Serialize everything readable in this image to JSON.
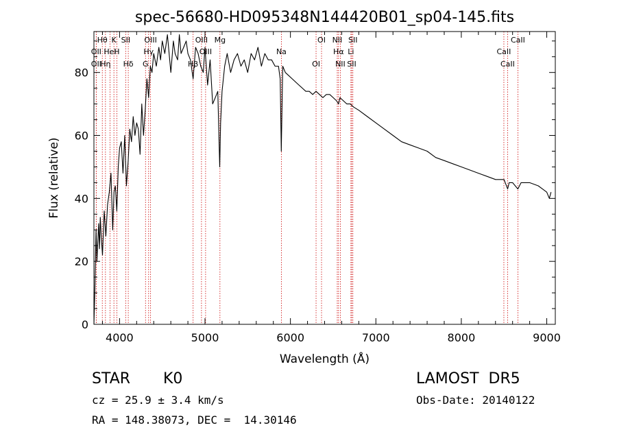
{
  "chart_data": {
    "type": "line",
    "title": "spec-56680-HD095348N144420B01_sp04-145.fits",
    "xlabel": "Wavelength (Å)",
    "ylabel": "Flux (relative)",
    "xlim": [
      3700,
      9100
    ],
    "ylim": [
      0,
      93
    ],
    "xticks": [
      4000,
      5000,
      6000,
      7000,
      8000,
      9000
    ],
    "yticks": [
      0,
      20,
      40,
      60,
      80
    ],
    "grid": false,
    "series": [
      {
        "color": "#000000",
        "x": [
          3700,
          3712,
          3725,
          3735,
          3745,
          3755,
          3765,
          3775,
          3785,
          3800,
          3820,
          3840,
          3860,
          3880,
          3900,
          3920,
          3935,
          3950,
          3968,
          3985,
          4000,
          4020,
          4040,
          4060,
          4080,
          4101,
          4120,
          4140,
          4160,
          4180,
          4200,
          4220,
          4240,
          4260,
          4280,
          4300,
          4320,
          4340,
          4360,
          4380,
          4400,
          4430,
          4460,
          4480,
          4500,
          4530,
          4560,
          4600,
          4630,
          4650,
          4680,
          4700,
          4720,
          4750,
          4780,
          4800,
          4830,
          4861,
          4890,
          4920,
          4950,
          4980,
          5000,
          5030,
          5060,
          5090,
          5120,
          5150,
          5172,
          5183,
          5200,
          5230,
          5260,
          5300,
          5340,
          5380,
          5420,
          5460,
          5500,
          5540,
          5580,
          5620,
          5660,
          5700,
          5740,
          5780,
          5820,
          5860,
          5880,
          5893,
          5910,
          5940,
          5980,
          6020,
          6060,
          6100,
          6140,
          6180,
          6220,
          6260,
          6300,
          6340,
          6380,
          6420,
          6460,
          6500,
          6540,
          6563,
          6580,
          6620,
          6660,
          6700,
          6740,
          6800,
          6900,
          7000,
          7100,
          7200,
          7300,
          7400,
          7500,
          7600,
          7700,
          7800,
          7900,
          8000,
          8100,
          8200,
          8300,
          8400,
          8500,
          8542,
          8560,
          8600,
          8662,
          8700,
          8800,
          8900,
          8950,
          9000,
          9030,
          9050
        ],
        "y": [
          0,
          12,
          30,
          20,
          26,
          32,
          24,
          34,
          28,
          22,
          36,
          28,
          38,
          42,
          48,
          30,
          42,
          44,
          36,
          50,
          56,
          58,
          48,
          60,
          44,
          52,
          62,
          58,
          66,
          60,
          64,
          62,
          54,
          70,
          60,
          68,
          78,
          72,
          82,
          80,
          86,
          82,
          88,
          84,
          90,
          86,
          92,
          80,
          90,
          86,
          84,
          92,
          86,
          88,
          90,
          86,
          84,
          78,
          88,
          86,
          82,
          80,
          88,
          76,
          84,
          70,
          72,
          74,
          50,
          64,
          74,
          82,
          86,
          80,
          84,
          86,
          82,
          84,
          80,
          86,
          84,
          88,
          82,
          86,
          84,
          84,
          82,
          82,
          78,
          55,
          82,
          80,
          79,
          78,
          77,
          76,
          75,
          74,
          74,
          73,
          74,
          73,
          72,
          73,
          73,
          72,
          71,
          70,
          72,
          71,
          70,
          70,
          69,
          68,
          66,
          64,
          62,
          60,
          58,
          57,
          56,
          55,
          53,
          52,
          51,
          50,
          49,
          48,
          47,
          46,
          46,
          43,
          45,
          45,
          43,
          45,
          45,
          44,
          43,
          42,
          40,
          42
        ]
      }
    ],
    "lines": [
      {
        "label": "Hθ",
        "x": 3798
      },
      {
        "label": "OII",
        "x": 3727
      },
      {
        "label": "OII",
        "x": 3727
      },
      {
        "label": "K",
        "x": 3934
      },
      {
        "label": "HeI",
        "x": 3889
      },
      {
        "label": "Hη",
        "x": 3835
      },
      {
        "label": "SII",
        "x": 4072
      },
      {
        "label": "H",
        "x": 3968
      },
      {
        "label": "Hδ",
        "x": 4102
      },
      {
        "label": "OIII",
        "x": 4363
      },
      {
        "label": "Hγ",
        "x": 4340
      },
      {
        "label": "G",
        "x": 4304
      },
      {
        "label": "OIII",
        "x": 4959
      },
      {
        "label": "OIII",
        "x": 5007
      },
      {
        "label": "Hβ",
        "x": 4861
      },
      {
        "label": "Mg",
        "x": 5175
      },
      {
        "label": "Na",
        "x": 5894
      },
      {
        "label": "OI",
        "x": 6300
      },
      {
        "label": "OI",
        "x": 6364
      },
      {
        "label": "Hα",
        "x": 6563
      },
      {
        "label": "SII",
        "x": 6717
      },
      {
        "label": "NII",
        "x": 6548
      },
      {
        "label": "Li",
        "x": 6708
      },
      {
        "label": "NII",
        "x": 6584
      },
      {
        "label": "SII",
        "x": 6731
      },
      {
        "label": "CaII",
        "x": 8498
      },
      {
        "label": "CaII",
        "x": 8542
      },
      {
        "label": "CaII",
        "x": 8662
      }
    ]
  },
  "info": {
    "class": "STAR",
    "subclass": "K0",
    "survey": "LAMOST  DR5",
    "cz": "cz = 25.9 ± 3.4 km/s",
    "obs_date": "Obs-Date: 20140122",
    "coords": "RA = 148.38073, DEC =  14.30146"
  }
}
